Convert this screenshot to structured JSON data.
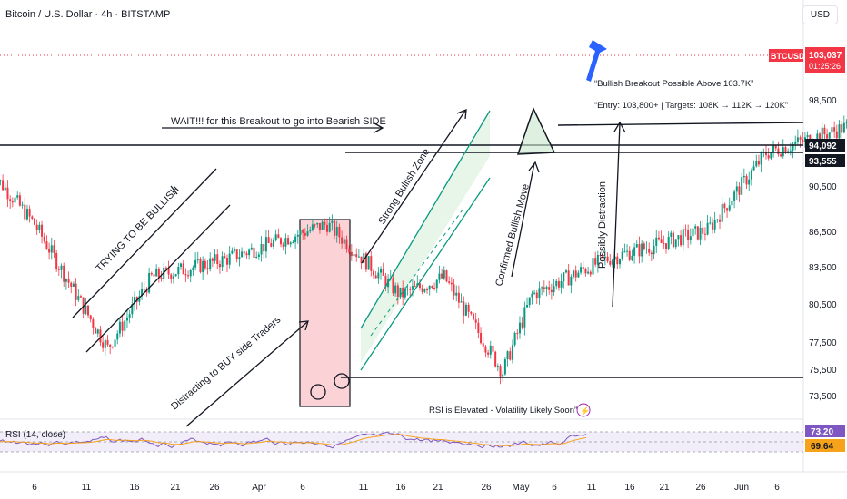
{
  "header": {
    "symbol_title": "Bitcoin / U.S. Dollar · 4h · BITSTAMP",
    "currency_button": "USD"
  },
  "price_axis": {
    "ticks": [
      "98,500",
      "90,500",
      "86,500",
      "83,500",
      "80,500",
      "77,500",
      "75,500",
      "73,500"
    ],
    "label_94092": "94,092",
    "label_93555": "93,555",
    "price_tag_symbol": "BTCUSD",
    "price_tag_value": "103,037",
    "price_tag_timer": "01:25:26"
  },
  "time_axis": {
    "ticks": [
      "6",
      "11",
      "16",
      "21",
      "26",
      "Apr",
      "6",
      "11",
      "16",
      "21",
      "26",
      "May",
      "6",
      "11",
      "16",
      "21",
      "26",
      "Jun",
      "6"
    ]
  },
  "annotations": {
    "wait_text": "WAIT!!! for this Breakout to go into Bearish SIDE",
    "trying_bullish": "TRYING TO BE BULLISH",
    "distracting": "Distracting to BUY side Traders",
    "strong_bullish": "Strong Bullish Zone",
    "confirmed_bullish": "Confirmed Bullish Move",
    "possibly_distraction": "Possibly Distraction",
    "breakout_note": "“Bullish Breakout Possible Above 103.7K”",
    "entry_note": "“Entry: 103,800+ | Targets: 108K → 112K → 120K”",
    "rsi_note": "RSI is Elevated - Volatility Likely Soon”"
  },
  "rsi": {
    "label": "RSI (14, close)",
    "value": "73.20",
    "ma_value": "69.64"
  },
  "colors": {
    "up": "#089981",
    "down": "#f23645",
    "rsi": "#7e57c2",
    "rsi_ma": "#f7a21b",
    "arrow_blue": "#2962ff",
    "zone_green": "#e8f5e9",
    "box_red": "#fbd2d6"
  },
  "chart_data": {
    "type": "candlestick",
    "title": "Bitcoin / U.S. Dollar · 4h · BITSTAMP",
    "y_ticks": [
      98500,
      90500,
      86500,
      83500,
      80500,
      77500,
      75500,
      73500
    ],
    "y_range": [
      73000,
      104500
    ],
    "last_price": 103037,
    "levels": [
      94092,
      93555
    ],
    "key_points": [
      {
        "x": "Mar 3",
        "y": 92500
      },
      {
        "x": "Mar 6",
        "y": 88000
      },
      {
        "x": "Mar 11",
        "y": 77500
      },
      {
        "x": "Mar 14",
        "y": 83500
      },
      {
        "x": "Mar 19",
        "y": 85000
      },
      {
        "x": "Mar 26",
        "y": 88000
      },
      {
        "x": "Mar 31",
        "y": 82000
      },
      {
        "x": "Apr 3",
        "y": 83500
      },
      {
        "x": "Apr 7",
        "y": 75500
      },
      {
        "x": "Apr 9",
        "y": 82000
      },
      {
        "x": "Apr 14",
        "y": 85000
      },
      {
        "x": "Apr 21",
        "y": 87500
      },
      {
        "x": "Apr 25",
        "y": 94000
      },
      {
        "x": "May 2",
        "y": 96800
      },
      {
        "x": "May 4",
        "y": 94200
      },
      {
        "x": "May 6",
        "y": 95000
      },
      {
        "x": "May 8",
        "y": 101000
      },
      {
        "x": "May 9",
        "y": 103037
      }
    ],
    "rsi_last": 73.2,
    "rsi_ma_last": 69.64
  }
}
